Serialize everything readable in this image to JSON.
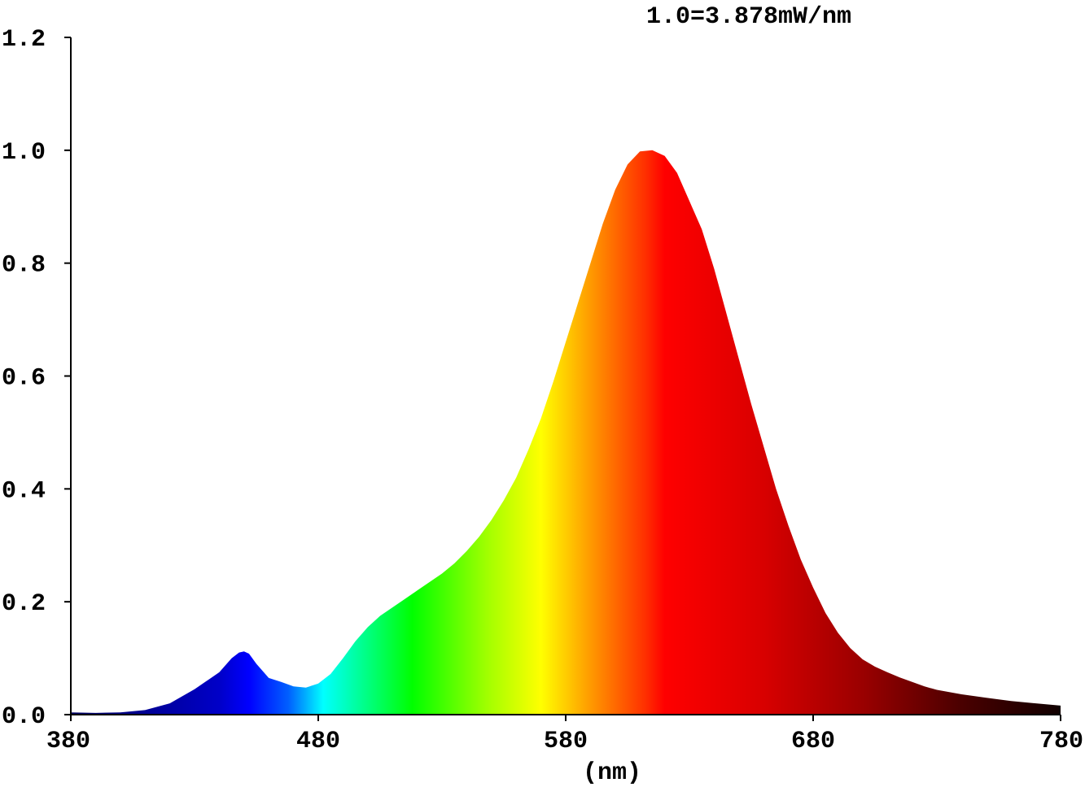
{
  "chart_data": {
    "type": "area",
    "title": "",
    "annotation": "1.0=3.878mW/nm",
    "xlabel": "(nm)",
    "ylabel": "",
    "xlim": [
      380,
      780
    ],
    "ylim": [
      0,
      1.2
    ],
    "x_ticks": [
      380,
      480,
      580,
      680,
      780
    ],
    "x_tick_labels": [
      "380",
      "480",
      "580",
      "680",
      "780"
    ],
    "y_ticks": [
      0,
      0.2,
      0.4,
      0.6,
      0.8,
      1.0,
      1.2
    ],
    "y_tick_labels": [
      "0.0",
      "0.2",
      "0.4",
      "0.6",
      "0.8",
      "1.0",
      "1.2"
    ],
    "grid": false,
    "fill": "visible-spectrum-gradient",
    "series": [
      {
        "x": [
          380,
          390,
          400,
          410,
          420,
          430,
          440,
          445,
          448,
          450,
          452,
          455,
          460,
          465,
          470,
          475,
          480,
          485,
          490,
          495,
          500,
          505,
          510,
          515,
          520,
          525,
          530,
          535,
          540,
          545,
          550,
          555,
          560,
          565,
          570,
          575,
          580,
          585,
          590,
          595,
          600,
          605,
          610,
          615,
          620,
          625,
          630,
          635,
          640,
          645,
          650,
          655,
          660,
          665,
          670,
          675,
          680,
          685,
          690,
          695,
          700,
          705,
          710,
          715,
          720,
          725,
          730,
          740,
          750,
          760,
          770,
          780
        ],
        "values": [
          0.004,
          0.003,
          0.004,
          0.008,
          0.02,
          0.045,
          0.075,
          0.1,
          0.11,
          0.112,
          0.108,
          0.09,
          0.065,
          0.058,
          0.05,
          0.048,
          0.055,
          0.072,
          0.1,
          0.13,
          0.155,
          0.175,
          0.19,
          0.205,
          0.22,
          0.235,
          0.25,
          0.268,
          0.29,
          0.315,
          0.345,
          0.38,
          0.42,
          0.47,
          0.525,
          0.59,
          0.66,
          0.73,
          0.8,
          0.87,
          0.93,
          0.975,
          0.998,
          1.0,
          0.99,
          0.96,
          0.91,
          0.86,
          0.79,
          0.71,
          0.63,
          0.55,
          0.475,
          0.4,
          0.335,
          0.275,
          0.225,
          0.18,
          0.145,
          0.118,
          0.098,
          0.085,
          0.075,
          0.066,
          0.058,
          0.05,
          0.044,
          0.036,
          0.03,
          0.024,
          0.02,
          0.016
        ]
      }
    ],
    "colors": {
      "axis": "#000000",
      "background": "#ffffff"
    }
  }
}
